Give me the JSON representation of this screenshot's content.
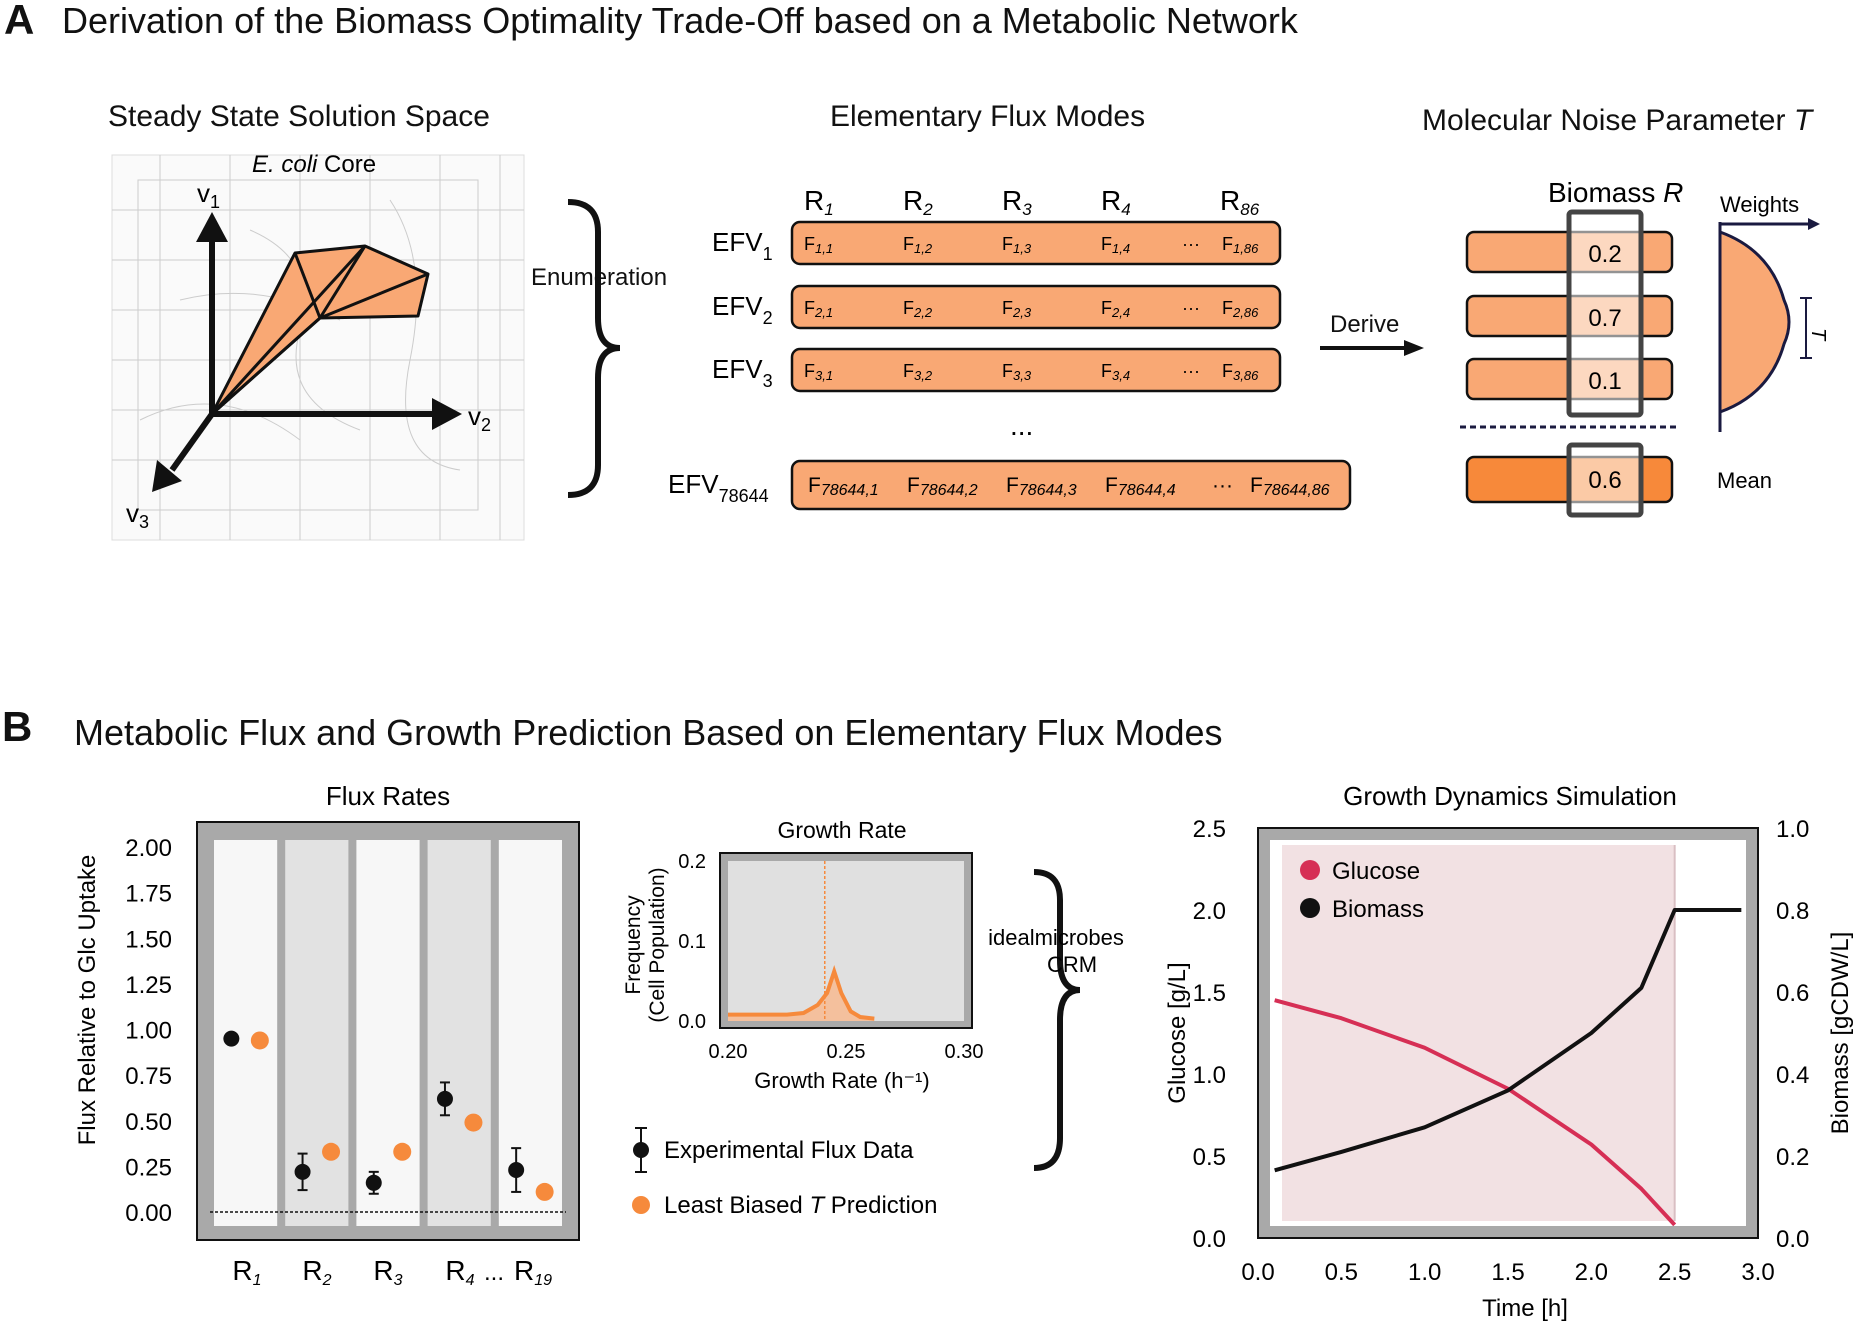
{
  "panel_a": {
    "letter": "A",
    "title": "Derivation of the Biomass Optimality Trade-Off based on a Metabolic Network",
    "col1_title": "Steady State Solution Space",
    "network_label_italic": "E. coli",
    "network_label_rest": " Core",
    "axes": [
      "v1",
      "v2",
      "v3"
    ],
    "enumeration_label": "Enumeration",
    "col2_title": "Elementary Flux Modes",
    "reaction_headers": [
      "R1",
      "R2",
      "R3",
      "R4",
      "R86"
    ],
    "efv_rows": [
      {
        "label": "EFV",
        "sub": "1",
        "cells": [
          "F1,1",
          "F1,2",
          "F1,3",
          "F1,4",
          "···",
          "F1,86"
        ]
      },
      {
        "label": "EFV",
        "sub": "2",
        "cells": [
          "F2,1",
          "F2,2",
          "F2,3",
          "F2,4",
          "···",
          "F2,86"
        ]
      },
      {
        "label": "EFV",
        "sub": "3",
        "cells": [
          "F3,1",
          "F3,2",
          "F3,3",
          "F3,4",
          "···",
          "F3,86"
        ]
      },
      {
        "label": "EFV",
        "sub": "78644",
        "cells": [
          "F78644,1",
          "F78644,2",
          "F78644,3",
          "F78644,4",
          "···",
          "F78644,86"
        ]
      }
    ],
    "ellipsis": "...",
    "derive_label": "Derive",
    "col3_title_main": "Molecular Noise Parameter ",
    "col3_title_italic": "T",
    "biomass_label_main": "Biomass ",
    "biomass_label_italic": "R",
    "biomass_values": [
      "0.2",
      "0.7",
      "0.1"
    ],
    "mean_value": "0.6",
    "weights_label": "Weights",
    "t_label": "T",
    "mean_label": "Mean",
    "colors": {
      "bar_fill": "#f9a874",
      "mean_fill": "#f7893a",
      "highlight_box": "#444444"
    }
  },
  "panel_b": {
    "letter": "B",
    "title": "Metabolic Flux and Growth Prediction Based on Elementary Flux Modes",
    "flux_title": "Flux Rates",
    "flux_ylabel": "Flux Relative to Glc Uptake",
    "growth_title": "Growth Rate",
    "growth_ylabel_1": "Frequency",
    "growth_ylabel_2": "(Cell Population)",
    "growth_xlabel": "Growth Rate (h⁻¹)",
    "legend_exp": "Experimental Flux Data",
    "legend_pred_main": "Least Biased ",
    "legend_pred_italic": "T",
    "legend_pred_rest": " Prediction",
    "crm_label_1": "idealmicrobes",
    "crm_label_2": "CRM",
    "dyn_title": "Growth Dynamics Simulation",
    "dyn_xlabel": "Time [h]",
    "dyn_ylabel_left": "Glucose [g/L]",
    "dyn_ylabel_right": "Biomass [gCDW/L]",
    "dyn_legend": [
      "Glucose",
      "Biomass"
    ]
  },
  "chart_data": [
    {
      "type": "scatter",
      "title": "Flux Rates",
      "ylabel": "Flux Relative to Glc Uptake",
      "categories": [
        "R1",
        "R2",
        "R3",
        "R4",
        "R19"
      ],
      "category_labels": [
        "R",
        "R",
        "R",
        "R",
        "R"
      ],
      "category_subs": [
        "1",
        "2",
        "3",
        "4",
        "19"
      ],
      "between_label": "...",
      "ylim": [
        0,
        2.0
      ],
      "yticks": [
        "0.00",
        "0.25",
        "0.50",
        "0.75",
        "1.00",
        "1.25",
        "1.50",
        "1.75",
        "2.00"
      ],
      "series": [
        {
          "name": "Experimental Flux Data",
          "values": [
            0.95,
            0.22,
            0.16,
            0.62,
            0.23
          ],
          "err": [
            0,
            0.1,
            0.06,
            0.09,
            0.12
          ],
          "color": "#111111"
        },
        {
          "name": "Least Biased T Prediction",
          "values": [
            0.94,
            0.33,
            0.33,
            0.49,
            0.11
          ],
          "color": "#f68a3c"
        }
      ]
    },
    {
      "type": "area",
      "title": "Growth Rate",
      "xlabel": "Growth Rate (h⁻¹)",
      "ylabel": "Frequency (Cell Population)",
      "xlim": [
        0.2,
        0.3
      ],
      "ylim": [
        0,
        0.2
      ],
      "xticks": [
        "0.20",
        "0.25",
        "0.30"
      ],
      "yticks": [
        "0.0",
        "0.1",
        "0.2"
      ],
      "x": [
        0.2,
        0.225,
        0.232,
        0.238,
        0.242,
        0.245,
        0.248,
        0.252,
        0.256,
        0.262
      ],
      "y": [
        0.008,
        0.008,
        0.01,
        0.02,
        0.035,
        0.062,
        0.035,
        0.012,
        0.005,
        0.003
      ],
      "mean_line": 0.241,
      "color": "#f68a3c"
    },
    {
      "type": "line",
      "title": "Growth Dynamics Simulation",
      "xlabel": "Time [h]",
      "ylabel": "Glucose [g/L]",
      "ylabel_right": "Biomass [gCDW/L]",
      "xlim": [
        0,
        3.0
      ],
      "ylim": [
        0,
        2.5
      ],
      "ylim_right": [
        0,
        1.0
      ],
      "xticks": [
        "0.0",
        "0.5",
        "1.0",
        "1.5",
        "2.0",
        "2.5",
        "3.0"
      ],
      "yticks": [
        "0.0",
        "0.5",
        "1.0",
        "1.5",
        "2.0",
        "2.5"
      ],
      "yticks_right": [
        "0.0",
        "0.2",
        "0.4",
        "0.6",
        "0.8",
        "1.0"
      ],
      "legend": "top-left",
      "series": [
        {
          "name": "Glucose",
          "axis": "left",
          "color": "#d62f55",
          "x": [
            0.1,
            0.5,
            1.0,
            1.5,
            2.0,
            2.3,
            2.5
          ],
          "y": [
            1.45,
            1.34,
            1.16,
            0.91,
            0.57,
            0.3,
            0.08
          ]
        },
        {
          "name": "Biomass",
          "axis": "right",
          "color": "#111111",
          "x": [
            0.1,
            0.5,
            1.0,
            1.5,
            2.0,
            2.3,
            2.5,
            2.9
          ],
          "y": [
            0.165,
            0.21,
            0.27,
            0.36,
            0.5,
            0.61,
            0.8,
            0.8
          ]
        }
      ],
      "shaded_until": 2.5
    }
  ]
}
